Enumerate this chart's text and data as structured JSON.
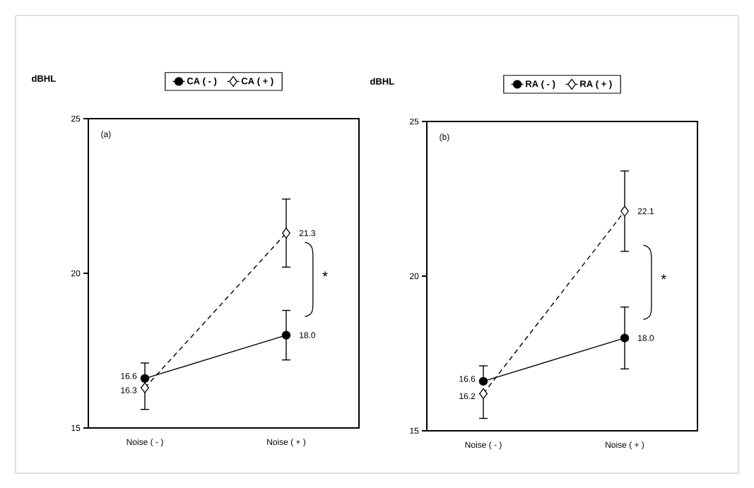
{
  "chart_data": [
    {
      "type": "line",
      "ylabel": "dBHL",
      "categories": [
        "Noise ( - )",
        "Noise ( + )"
      ],
      "ylim": [
        15,
        25
      ],
      "yticks": [
        15,
        20,
        25
      ],
      "legend": "top",
      "annotations": [
        "(a)",
        "*"
      ],
      "series": [
        {
          "name": "CA ( - )",
          "color": "#000000",
          "marker": "circle",
          "line_style": "solid",
          "values": [
            16.6,
            18.0
          ],
          "errors": [
            [
              16.6,
              17.1
            ],
            0.8
          ],
          "value_labels": [
            "16.6",
            "18.0"
          ]
        },
        {
          "name": "CA ( + )",
          "color": "#000000",
          "marker": "diamond",
          "line_style": "dashed",
          "values": [
            16.3,
            21.3
          ],
          "errors": [
            [
              15.6,
              16.3
            ],
            1.1
          ],
          "value_labels": [
            "16.3",
            "21.3"
          ]
        }
      ]
    },
    {
      "type": "line",
      "ylabel": "dBHL",
      "categories": [
        "Noise ( - )",
        "Noise ( + )"
      ],
      "ylim": [
        15,
        25
      ],
      "yticks": [
        15,
        20,
        25
      ],
      "legend": "top",
      "annotations": [
        "(b)",
        "*"
      ],
      "series": [
        {
          "name": "RA ( - )",
          "color": "#000000",
          "marker": "circle",
          "line_style": "solid",
          "values": [
            16.6,
            18.0
          ],
          "errors": [
            [
              16.6,
              17.1
            ],
            1.0
          ],
          "value_labels": [
            "16.6",
            "18.0"
          ]
        },
        {
          "name": "RA ( + )",
          "color": "#000000",
          "marker": "diamond",
          "line_style": "dashed",
          "values": [
            16.2,
            22.1
          ],
          "errors": [
            [
              15.4,
              16.2
            ],
            1.3
          ],
          "value_labels": [
            "16.2",
            "22.1"
          ]
        }
      ]
    }
  ]
}
